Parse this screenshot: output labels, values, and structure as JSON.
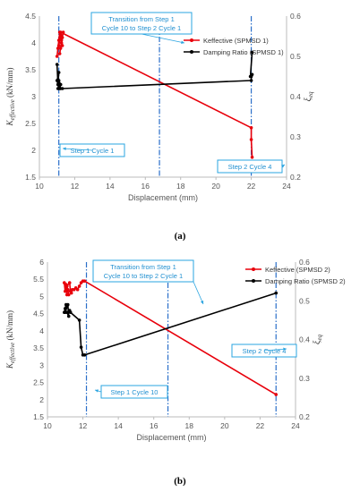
{
  "panels": [
    {
      "label": "(a)"
    },
    {
      "label": "(b)"
    }
  ],
  "chart_data": [
    {
      "type": "line",
      "xlabel": "Displacement (mm)",
      "ylabel": "K_effective (kN/mm)",
      "ylabel_main": "K",
      "ylabel_sub": "effective",
      "ylabel_unit": "(kN/mm)",
      "y2label": "ξ_eq",
      "y2label_main": "ξ",
      "y2label_sub": "eq",
      "xlim": [
        10,
        24
      ],
      "xticks": [
        10,
        12,
        14,
        16,
        18,
        20,
        22,
        24
      ],
      "ylim": [
        1.5,
        4.5
      ],
      "yticks": [
        1.5,
        2,
        2.5,
        3,
        3.5,
        4,
        4.5
      ],
      "y2lim": [
        0.2,
        0.6
      ],
      "y2ticks": [
        0.2,
        0.3,
        0.4,
        0.5,
        0.6
      ],
      "grid": false,
      "legend_position": "top-right",
      "series": [
        {
          "name": "Keffective (SPMSD 1)",
          "axis": "left",
          "color": "#e8000b",
          "x": [
            11.0,
            11.05,
            11.1,
            11.15,
            11.1,
            11.2,
            11.25,
            11.15,
            11.3,
            11.2,
            11.35,
            11.25,
            11.3,
            11.2,
            22.0,
            22.0,
            22.05
          ],
          "y": [
            3.75,
            3.9,
            4.05,
            4.2,
            3.95,
            4.15,
            4.0,
            3.8,
            4.1,
            3.9,
            4.2,
            4.05,
            3.95,
            4.2,
            2.42,
            2.2,
            1.87
          ]
        },
        {
          "name": "Damping Ratio (SPMSD 1)",
          "axis": "right",
          "color": "#000000",
          "x": [
            11.0,
            11.05,
            11.1,
            11.0,
            11.1,
            11.2,
            11.1,
            11.2,
            11.05,
            11.2,
            11.15,
            11.3,
            22.0,
            22.0,
            22.05,
            21.95,
            22.05
          ],
          "y": [
            0.48,
            0.43,
            0.46,
            0.44,
            0.42,
            0.42,
            0.44,
            0.43,
            0.42,
            0.43,
            0.42,
            0.42,
            0.44,
            0.45,
            0.455,
            0.45,
            0.51
          ]
        }
      ],
      "vlines": [
        11.1,
        16.8,
        22.0
      ],
      "annotations": [
        {
          "text_lines": [
            "Transition from Step 1",
            "Cycle 10 to Step 2 Cycle 1"
          ],
          "x": 16.8,
          "y": 4.2
        },
        {
          "text_lines": [
            "Step 1 Cycle 1"
          ],
          "x": 11.1,
          "y": 2.0
        },
        {
          "text_lines": [
            "Step 2 Cycle 4"
          ],
          "x": 22.0,
          "y": 1.75
        }
      ]
    },
    {
      "type": "line",
      "xlabel": "Displacement (mm)",
      "ylabel": "K_effective (kN/mm)",
      "ylabel_main": "K",
      "ylabel_sub": "effective",
      "ylabel_unit": "(kN/mm)",
      "y2label": "ξ_eq",
      "y2label_main": "ξ",
      "y2label_sub": "eq",
      "xlim": [
        10,
        24
      ],
      "xticks": [
        10,
        12,
        14,
        16,
        18,
        20,
        22,
        24
      ],
      "ylim": [
        1.5,
        6
      ],
      "yticks": [
        1.5,
        2,
        2.5,
        3,
        3.5,
        4,
        4.5,
        5,
        5.5,
        6
      ],
      "y2lim": [
        0.2,
        0.6
      ],
      "y2ticks": [
        0.2,
        0.3,
        0.4,
        0.5,
        0.6
      ],
      "grid": false,
      "legend_position": "top-right",
      "series": [
        {
          "name": "Keffective (SPMSD 2)",
          "axis": "left",
          "color": "#e8000b",
          "x": [
            10.95,
            11.0,
            11.05,
            11.1,
            11.05,
            11.15,
            11.2,
            11.1,
            11.25,
            11.3,
            11.35,
            11.4,
            11.5,
            11.6,
            11.7,
            11.8,
            11.9,
            12.0,
            12.1,
            22.9
          ],
          "y": [
            5.4,
            5.15,
            5.3,
            5.05,
            5.35,
            5.2,
            5.05,
            5.3,
            5.4,
            5.15,
            5.1,
            5.2,
            5.2,
            5.25,
            5.2,
            5.3,
            5.4,
            5.45,
            5.45,
            2.15
          ]
        },
        {
          "name": "Damping Ratio (SPMSD 2)",
          "axis": "right",
          "color": "#000000",
          "x": [
            10.95,
            11.0,
            11.05,
            11.1,
            11.0,
            11.15,
            11.2,
            11.1,
            11.25,
            11.3,
            11.8,
            11.9,
            12.0,
            12.1,
            22.9
          ],
          "y": [
            0.47,
            0.48,
            0.49,
            0.485,
            0.47,
            0.49,
            0.46,
            0.47,
            0.475,
            0.47,
            0.45,
            0.38,
            0.36,
            0.36,
            0.52
          ]
        }
      ],
      "vlines": [
        12.2,
        16.8,
        22.9
      ],
      "annotations": [
        {
          "text_lines": [
            "Transition from Step 1",
            "Cycle 10 to Step 2 Cycle 1"
          ],
          "x": 16.8,
          "y": 4.2
        },
        {
          "text_lines": [
            "Step 1 Cycle 10"
          ],
          "x": 12.2,
          "y": 2.75
        },
        {
          "text_lines": [
            "Step 2 Cycle 4"
          ],
          "x": 22.9,
          "y": 4.1
        }
      ]
    }
  ]
}
